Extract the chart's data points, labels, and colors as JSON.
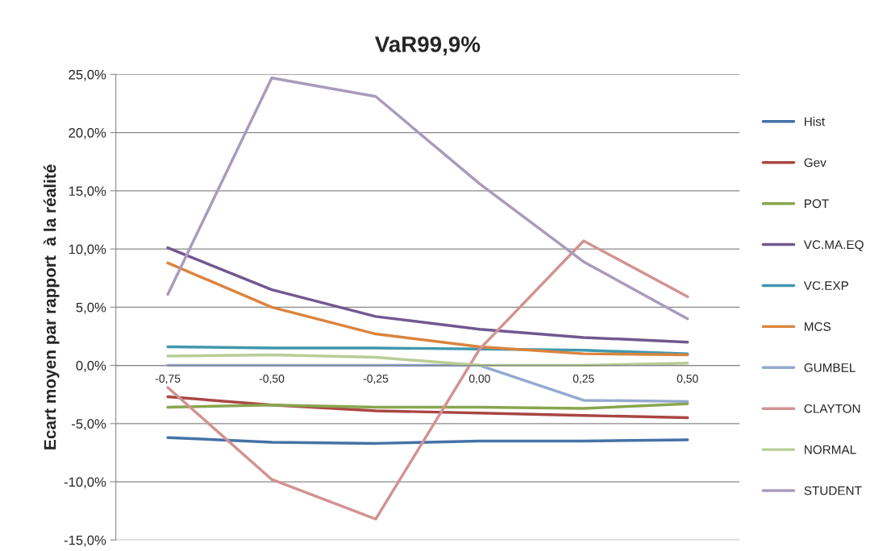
{
  "chart_data": {
    "type": "line",
    "title": "VaR99,9%",
    "ylabel": "Ecart moyen par rapport  à la réalité",
    "categories": [
      "-0,75",
      "-0,50",
      "-0,25",
      "0,00",
      "0,25",
      "0,50"
    ],
    "series": [
      {
        "name": "Hist",
        "color": "#4572a7",
        "values": [
          -6.2,
          -6.6,
          -6.7,
          -6.5,
          -6.5,
          -6.4
        ]
      },
      {
        "name": "Gev",
        "color": "#aa4643",
        "values": [
          -2.7,
          -3.4,
          -3.9,
          -4.1,
          -4.3,
          -4.5
        ]
      },
      {
        "name": "POT",
        "color": "#89a54e",
        "values": [
          -3.6,
          -3.4,
          -3.6,
          -3.6,
          -3.7,
          -3.3
        ]
      },
      {
        "name": "VC.MA.EQ",
        "color": "#71588f",
        "values": [
          10.1,
          6.5,
          4.2,
          3.1,
          2.4,
          2.0
        ]
      },
      {
        "name": "VC.EXP",
        "color": "#4198af",
        "values": [
          1.6,
          1.5,
          1.5,
          1.4,
          1.3,
          1.0
        ]
      },
      {
        "name": "MCS",
        "color": "#db843d",
        "values": [
          8.8,
          5.0,
          2.7,
          1.6,
          1.0,
          0.9
        ]
      },
      {
        "name": "GUMBEL",
        "color": "#93a9cf",
        "values": [
          0.0,
          0.0,
          0.0,
          0.0,
          -3.0,
          -3.1
        ]
      },
      {
        "name": "CLAYTON",
        "color": "#d19392",
        "values": [
          -1.9,
          -9.8,
          -13.2,
          1.4,
          10.7,
          5.9
        ]
      },
      {
        "name": "NORMAL",
        "color": "#b9cd96",
        "values": [
          0.8,
          0.9,
          0.7,
          0.0,
          0.0,
          0.2
        ]
      },
      {
        "name": "STUDENT",
        "color": "#a99bbd",
        "values": [
          6.1,
          24.7,
          23.1,
          15.6,
          8.9,
          4.0
        ]
      }
    ],
    "ylim": [
      -15,
      25
    ],
    "yticks": [
      {
        "value": -15,
        "label": "-15,0%"
      },
      {
        "value": -10,
        "label": "-10,0%"
      },
      {
        "value": -5,
        "label": "-5,0%"
      },
      {
        "value": 0,
        "label": "0,0%"
      },
      {
        "value": 5,
        "label": "5,0%"
      },
      {
        "value": 10,
        "label": "10,0%"
      },
      {
        "value": 15,
        "label": "15,0%"
      },
      {
        "value": 20,
        "label": "20,0%"
      },
      {
        "value": 25,
        "label": "25,0%"
      }
    ],
    "grid": "y",
    "legend": "right",
    "marker": "none",
    "line_style": "solid"
  }
}
